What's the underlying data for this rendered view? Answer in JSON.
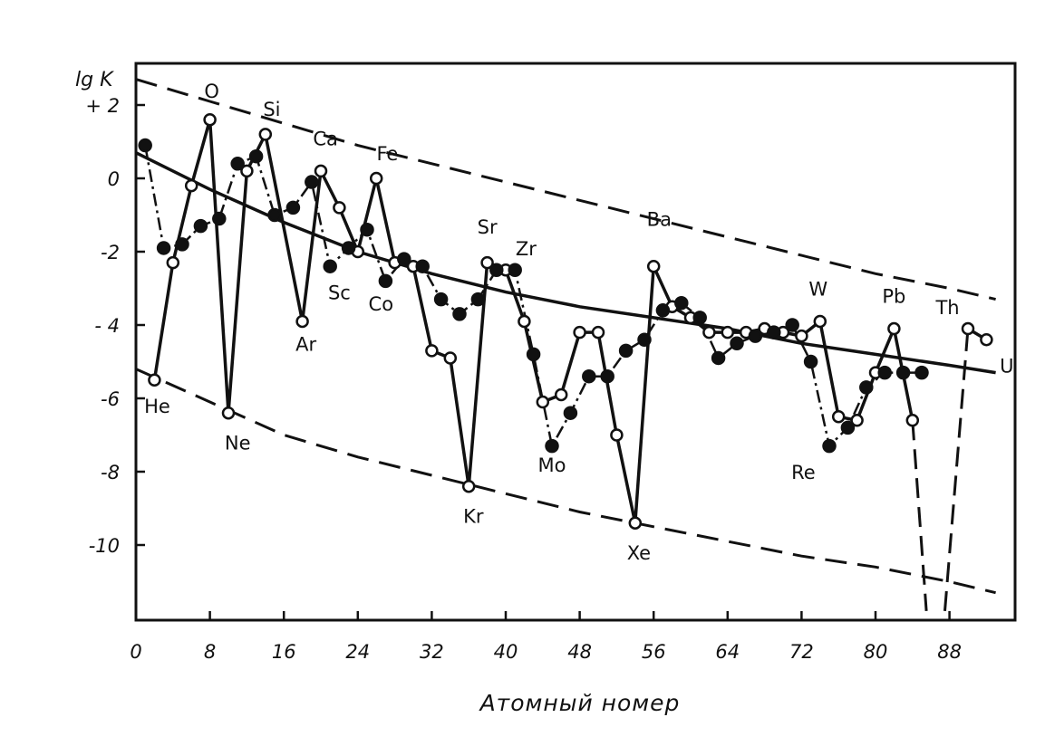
{
  "chart_data": {
    "type": "line",
    "title": "",
    "xlabel": "Атомный номер",
    "ylabel": "lg K",
    "xlim": [
      0,
      93
    ],
    "ylim": [
      -12,
      3
    ],
    "x_ticks": [
      {
        "v": 0,
        "label": "0"
      },
      {
        "v": 8,
        "label": "8"
      },
      {
        "v": 16,
        "label": "16"
      },
      {
        "v": 24,
        "label": "24"
      },
      {
        "v": 32,
        "label": "32"
      },
      {
        "v": 40,
        "label": "40"
      },
      {
        "v": 48,
        "label": "48"
      },
      {
        "v": 56,
        "label": "56"
      },
      {
        "v": 64,
        "label": "64"
      },
      {
        "v": 72,
        "label": "72"
      },
      {
        "v": 80,
        "label": "80"
      },
      {
        "v": 88,
        "label": "88"
      }
    ],
    "y_ticks": [
      {
        "v": 2,
        "label": "+ 2"
      },
      {
        "v": 0,
        "label": "0"
      },
      {
        "v": -2,
        "label": "-2"
      },
      {
        "v": -4,
        "label": "- 4"
      },
      {
        "v": -6,
        "label": "-6"
      },
      {
        "v": -8,
        "label": "-8"
      },
      {
        "v": -10,
        "label": "-10"
      }
    ],
    "grid": false,
    "series": [
      {
        "style": "solid-open-circles",
        "points": [
          [
            2,
            -5.5
          ],
          [
            4,
            -2.3
          ],
          [
            6,
            -0.2
          ],
          [
            8,
            1.6
          ],
          [
            10,
            -6.4
          ],
          [
            12,
            0.2
          ],
          [
            14,
            1.2
          ],
          [
            18,
            -3.9
          ],
          [
            20,
            0.2
          ],
          [
            22,
            -0.8
          ],
          [
            24,
            -2.0
          ],
          [
            26,
            0.0
          ],
          [
            28,
            -2.3
          ],
          [
            30,
            -2.4
          ],
          [
            32,
            -4.7
          ],
          [
            34,
            -4.9
          ],
          [
            36,
            -8.4
          ],
          [
            38,
            -2.3
          ],
          [
            40,
            -2.5
          ],
          [
            42,
            -3.9
          ],
          [
            44,
            -6.1
          ],
          [
            46,
            -5.9
          ],
          [
            48,
            -4.2
          ],
          [
            50,
            -4.2
          ],
          [
            52,
            -7.0
          ],
          [
            54,
            -9.4
          ],
          [
            56,
            -2.4
          ],
          [
            58,
            -3.5
          ],
          [
            60,
            -3.8
          ],
          [
            62,
            -4.2
          ],
          [
            64,
            -4.2
          ],
          [
            66,
            -4.2
          ],
          [
            68,
            -4.1
          ],
          [
            70,
            -4.2
          ],
          [
            72,
            -4.3
          ],
          [
            74,
            -3.9
          ],
          [
            76,
            -6.5
          ],
          [
            78,
            -6.6
          ],
          [
            80,
            -5.3
          ],
          [
            82,
            -4.1
          ],
          [
            84,
            -6.6
          ]
        ]
      },
      {
        "style": "dash-dot-filled-circles",
        "points": [
          [
            1,
            0.9
          ],
          [
            3,
            -1.9
          ],
          [
            5,
            -1.8
          ],
          [
            7,
            -1.3
          ],
          [
            9,
            -1.1
          ],
          [
            11,
            0.4
          ],
          [
            13,
            0.6
          ],
          [
            15,
            -1.0
          ],
          [
            17,
            -0.8
          ],
          [
            19,
            -0.1
          ],
          [
            21,
            -2.4
          ],
          [
            23,
            -1.9
          ],
          [
            25,
            -1.4
          ],
          [
            27,
            -2.8
          ],
          [
            29,
            -2.2
          ],
          [
            31,
            -2.4
          ],
          [
            33,
            -3.3
          ],
          [
            35,
            -3.7
          ],
          [
            37,
            -3.3
          ],
          [
            39,
            -2.5
          ],
          [
            41,
            -2.5
          ],
          [
            43,
            -4.8
          ],
          [
            45,
            -7.3
          ],
          [
            47,
            -6.4
          ],
          [
            49,
            -5.4
          ],
          [
            51,
            -5.4
          ],
          [
            53,
            -4.7
          ],
          [
            55,
            -4.4
          ],
          [
            57,
            -3.6
          ],
          [
            59,
            -3.4
          ],
          [
            61,
            -3.8
          ],
          [
            63,
            -4.9
          ],
          [
            65,
            -4.5
          ],
          [
            67,
            -4.3
          ],
          [
            69,
            -4.2
          ],
          [
            71,
            -4.0
          ],
          [
            73,
            -5.0
          ],
          [
            75,
            -7.3
          ],
          [
            77,
            -6.8
          ],
          [
            79,
            -5.7
          ],
          [
            81,
            -5.3
          ],
          [
            83,
            -5.3
          ],
          [
            85,
            -5.3
          ]
        ]
      },
      {
        "style": "solid-open-circles",
        "points": [
          [
            90,
            -4.1
          ],
          [
            92,
            -4.4
          ]
        ]
      }
    ],
    "long_dash_segments": [
      [
        [
          84,
          -6.6
        ],
        [
          85.5,
          -11.8
        ]
      ],
      [
        [
          87.5,
          -11.8
        ],
        [
          90,
          -4.1
        ]
      ]
    ],
    "trend_curve": [
      [
        0,
        0.7
      ],
      [
        8,
        -0.3
      ],
      [
        16,
        -1.2
      ],
      [
        24,
        -2.0
      ],
      [
        32,
        -2.6
      ],
      [
        40,
        -3.1
      ],
      [
        48,
        -3.5
      ],
      [
        56,
        -3.8
      ],
      [
        64,
        -4.1
      ],
      [
        72,
        -4.5
      ],
      [
        80,
        -4.8
      ],
      [
        88,
        -5.1
      ],
      [
        93,
        -5.3
      ]
    ],
    "upper_envelope": [
      [
        0,
        2.7
      ],
      [
        8,
        2.1
      ],
      [
        16,
        1.5
      ],
      [
        24,
        0.9
      ],
      [
        32,
        0.4
      ],
      [
        40,
        -0.1
      ],
      [
        48,
        -0.6
      ],
      [
        56,
        -1.1
      ],
      [
        64,
        -1.6
      ],
      [
        72,
        -2.1
      ],
      [
        80,
        -2.6
      ],
      [
        88,
        -3.0
      ],
      [
        93,
        -3.3
      ]
    ],
    "lower_envelope": [
      [
        0,
        -5.2
      ],
      [
        8,
        -6.1
      ],
      [
        16,
        -7.0
      ],
      [
        24,
        -7.6
      ],
      [
        32,
        -8.1
      ],
      [
        40,
        -8.6
      ],
      [
        48,
        -9.1
      ],
      [
        56,
        -9.5
      ],
      [
        64,
        -9.9
      ],
      [
        72,
        -10.3
      ],
      [
        80,
        -10.6
      ],
      [
        88,
        -11.0
      ],
      [
        93,
        -11.3
      ]
    ],
    "element_labels": [
      {
        "text": "He",
        "x": 2.3,
        "y": -6.4
      },
      {
        "text": "O",
        "x": 8.2,
        "y": 2.2
      },
      {
        "text": "Ne",
        "x": 11.0,
        "y": -7.4
      },
      {
        "text": "Si",
        "x": 14.7,
        "y": 1.7
      },
      {
        "text": "Ca",
        "x": 20.5,
        "y": 0.9
      },
      {
        "text": "Ar",
        "x": 18.4,
        "y": -4.7
      },
      {
        "text": "Sc",
        "x": 22.0,
        "y": -3.3
      },
      {
        "text": "Fe",
        "x": 27.2,
        "y": 0.5
      },
      {
        "text": "Co",
        "x": 26.5,
        "y": -3.6
      },
      {
        "text": "Sr",
        "x": 38.0,
        "y": -1.5
      },
      {
        "text": "Zr",
        "x": 42.2,
        "y": -2.1
      },
      {
        "text": "Kr",
        "x": 36.5,
        "y": -9.4
      },
      {
        "text": "Mo",
        "x": 45.0,
        "y": -8.0
      },
      {
        "text": "Xe",
        "x": 54.4,
        "y": -10.4
      },
      {
        "text": "Ba",
        "x": 56.6,
        "y": -1.3
      },
      {
        "text": "W",
        "x": 73.8,
        "y": -3.2
      },
      {
        "text": "Re",
        "x": 72.2,
        "y": -8.2
      },
      {
        "text": "Pb",
        "x": 82.0,
        "y": -3.4
      },
      {
        "text": "Th",
        "x": 87.8,
        "y": -3.7
      },
      {
        "text": "U",
        "x": 94.2,
        "y": -5.3
      }
    ]
  }
}
